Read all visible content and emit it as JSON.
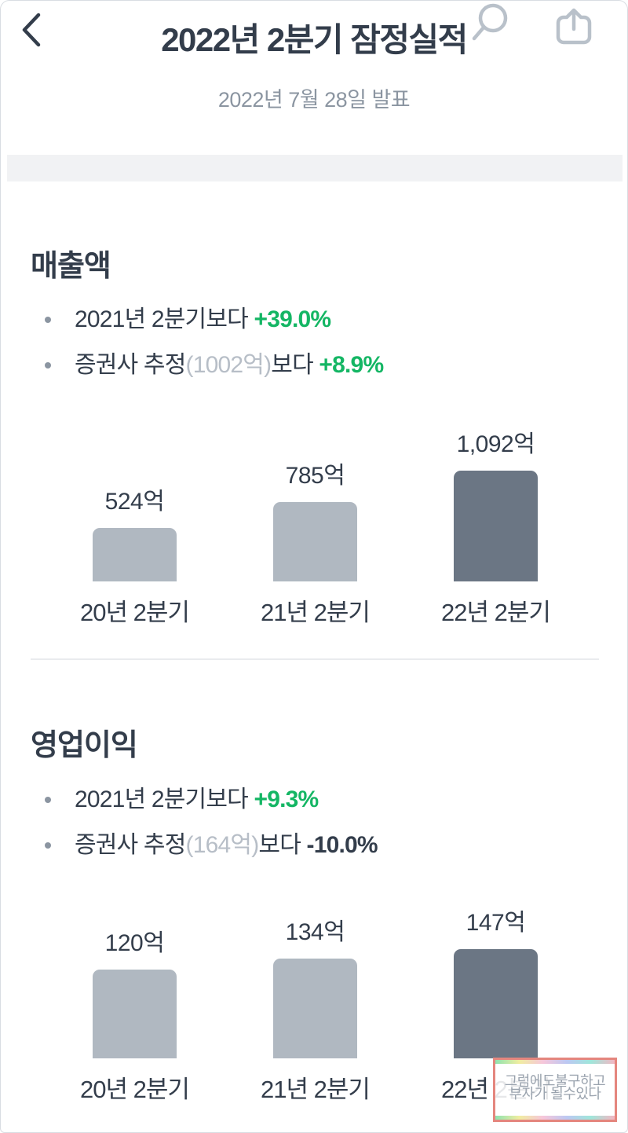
{
  "header": {
    "title": "2022년 2분기 잠정실적",
    "subtitle": "2022년 7월 28일 발표"
  },
  "colors": {
    "text_dark": "#333d4b",
    "text_gray": "#8b95a1",
    "text_muted": "#b7bec7",
    "green": "#14b664",
    "bar_light": "#b0b8c1",
    "bar_dark": "#6b7684",
    "band": "#f1f2f4",
    "icon_gray": "#b9c1ca",
    "watermark_border": "#e4867e"
  },
  "sections": [
    {
      "heading": "매출액",
      "bullets": [
        {
          "lead": "2021년 2분기보다 ",
          "muted": "",
          "tail": "",
          "value": "+39.0%",
          "value_style": "green"
        },
        {
          "lead": "증권사 추정",
          "muted": "(1002억)",
          "tail": "보다 ",
          "value": "+8.9%",
          "value_style": "green"
        }
      ]
    },
    {
      "heading": "영업이익",
      "bullets": [
        {
          "lead": "2021년 2분기보다 ",
          "muted": "",
          "tail": "",
          "value": "+9.3%",
          "value_style": "green"
        },
        {
          "lead": "증권사 추정",
          "muted": "(164억)",
          "tail": "보다 ",
          "value": "-10.0%",
          "value_style": "dark"
        }
      ]
    }
  ],
  "chart_data": [
    {
      "type": "bar",
      "title": "매출액",
      "categories": [
        "20년 2분기",
        "21년 2분기",
        "22년 2분기"
      ],
      "values": [
        524,
        785,
        1092
      ],
      "value_labels": [
        "524억",
        "785억",
        "1,092억"
      ],
      "unit": "억",
      "bar_colors": [
        "#b0b8c1",
        "#b0b8c1",
        "#6b7684"
      ],
      "xlabel": "",
      "ylabel": "",
      "ylim": [
        0,
        1092
      ],
      "grid": false,
      "legend": false
    },
    {
      "type": "bar",
      "title": "영업이익",
      "categories": [
        "20년 2분기",
        "21년 2분기",
        "22년 2분기"
      ],
      "values": [
        120,
        134,
        147
      ],
      "value_labels": [
        "120억",
        "134억",
        "147억"
      ],
      "unit": "억",
      "bar_colors": [
        "#b0b8c1",
        "#b0b8c1",
        "#6b7684"
      ],
      "xlabel": "",
      "ylabel": "",
      "ylim": [
        0,
        147
      ],
      "grid": false,
      "legend": false
    }
  ],
  "watermark": {
    "line1": "그럼에도불구하고",
    "line2": "부자가 될수있다"
  }
}
